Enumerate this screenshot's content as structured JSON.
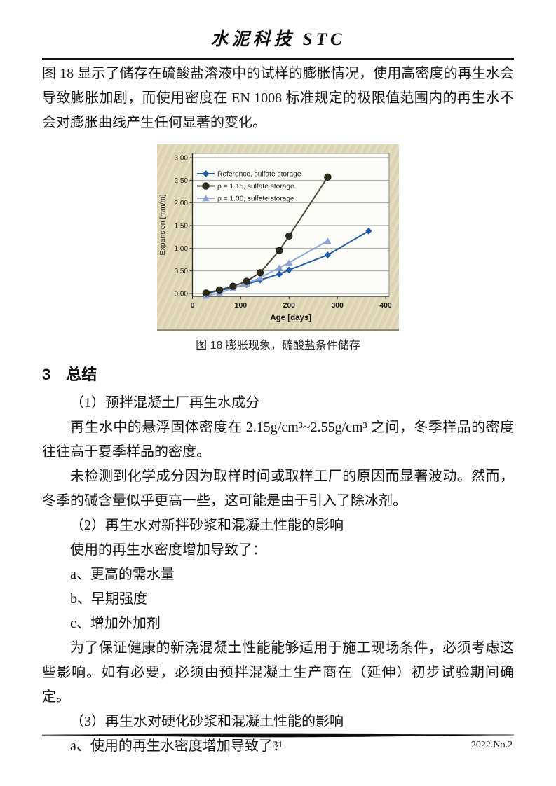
{
  "header": {
    "title": "水泥科技 STC"
  },
  "intro_paragraph": "图 18 显示了储存在硫酸盐溶液中的试样的膨胀情况，使用高密度的再生水会导致膨胀加剧，而使用密度在 EN 1008 标准规定的极限值范围内的再生水不会对膨胀曲线产生任何显著的变化。",
  "figure": {
    "caption": "图 18 膨胀现象，硫酸盐条件储存"
  },
  "section": {
    "number": "3",
    "title": "总结"
  },
  "summary_paragraphs": [
    "（1）预拌混凝土厂再生水成分",
    "再生水中的悬浮固体密度在 2.15g/cm³~2.55g/cm³ 之间，冬季样品的密度往往高于夏季样品的密度。",
    "未检测到化学成分因为取样时间或取样工厂的原因而显著波动。然而，冬季的碱含量似乎更高一些，这可能是由于引入了除冰剂。",
    "（2）再生水对新拌砂浆和混凝土性能的影响",
    "使用的再生水密度增加导致了：",
    "a、更高的需水量",
    "b、早期强度",
    "c、增加外加剂",
    "为了保证健康的新浇混凝土性能能够适用于施工现场条件，必须考虑这些影响。如有必要，必须由预拌混凝土生产商在（延伸）初步试验期间确定。",
    "（3）再生水对硬化砂浆和混凝土性能的影响",
    "a、使用的再生水密度增加导致了："
  ],
  "footer": {
    "page_number": "31",
    "issue": "2022.No.2"
  },
  "chart_data": {
    "type": "line",
    "title": "",
    "xlabel": "Age [days]",
    "ylabel": "Expansion [mm/m]",
    "xlim": [
      0,
      400
    ],
    "ylim": [
      0,
      3.0
    ],
    "xticks": [
      0,
      100,
      200,
      300,
      400
    ],
    "ytick_values": [
      0,
      0.5,
      1.0,
      1.5,
      2.0,
      2.5,
      3.0
    ],
    "ytick_labels": [
      "0.00",
      "0.50",
      "1.00",
      "1.50",
      "2.00",
      "2.50",
      "3.00"
    ],
    "grid": "horizontal",
    "legend_position": "top-left",
    "background_color": "#ddd6b4",
    "plot_background": "#fcfcf8",
    "series": [
      {
        "name": "Reference, sulfate storage",
        "marker": "diamond",
        "line_color": "#1f5aa8",
        "marker_color": "#1f5aa8",
        "points": [
          [
            28,
            0.0
          ],
          [
            56,
            0.07
          ],
          [
            84,
            0.13
          ],
          [
            112,
            0.2
          ],
          [
            140,
            0.3
          ],
          [
            180,
            0.43
          ],
          [
            200,
            0.52
          ],
          [
            280,
            0.85
          ],
          [
            365,
            1.38
          ]
        ]
      },
      {
        "name": "ρ = 1.15, sulfate storage",
        "marker": "circle",
        "line_color": "#4a4732",
        "marker_color": "#2e2c1d",
        "points": [
          [
            28,
            0.01
          ],
          [
            56,
            0.08
          ],
          [
            84,
            0.16
          ],
          [
            112,
            0.27
          ],
          [
            140,
            0.46
          ],
          [
            180,
            0.95
          ],
          [
            200,
            1.27
          ],
          [
            280,
            2.57
          ]
        ]
      },
      {
        "name": "ρ = 1.06, sulfate storage",
        "marker": "triangle",
        "line_color": "#8fa8da",
        "marker_color": "#8aa2d6",
        "points": [
          [
            28,
            -0.05
          ],
          [
            56,
            0.01
          ],
          [
            84,
            0.12
          ],
          [
            112,
            0.22
          ],
          [
            140,
            0.35
          ],
          [
            180,
            0.57
          ],
          [
            200,
            0.68
          ],
          [
            280,
            1.16
          ]
        ]
      }
    ]
  }
}
